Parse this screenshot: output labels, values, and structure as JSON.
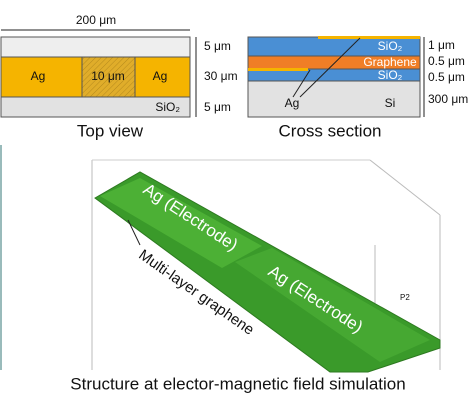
{
  "top_view": {
    "width": "200 μm",
    "left_electrode": "Ag",
    "gap": "10 μm",
    "right_electrode": "Ag",
    "substrate": "SiO₂",
    "top_margin": "5 μm",
    "electrode_height": "30 μm",
    "bottom_margin": "5 μm",
    "caption": "Top view"
  },
  "cross_section": {
    "top_layer": "SiO₂",
    "graphene": "Graphene",
    "lower_layer": "SiO₂",
    "electrode": "Ag",
    "substrate": "Si",
    "thicknesses": [
      "1 μm",
      "0.5 μm",
      "0.5 μm",
      "300 μm"
    ],
    "caption": "Cross section"
  },
  "simulation": {
    "electrode_1": "Ag (Electrode)",
    "electrode_2": "Ag (Electrode)",
    "graphene": "Multi-layer graphene",
    "port": "P2"
  },
  "caption": "Structure at elector-magnetic field simulation"
}
